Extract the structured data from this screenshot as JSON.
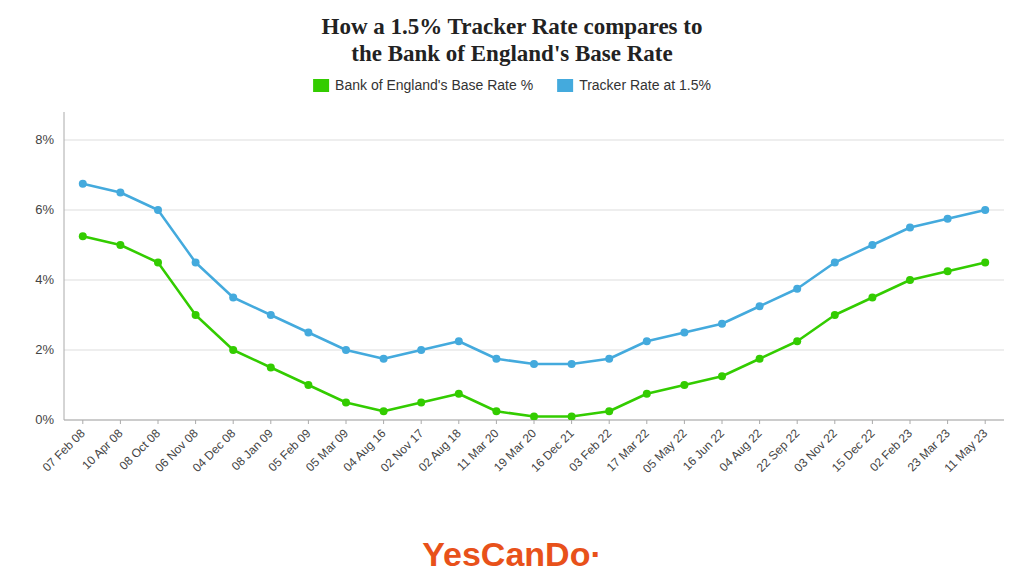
{
  "chart_data": {
    "type": "line",
    "title": "How a 1.5% Tracker Rate compares to\nthe Bank of England's Base Rate",
    "categories": [
      "07 Feb 08",
      "10 Apr 08",
      "08 Oct 08",
      "06 Nov 08",
      "04 Dec 08",
      "08 Jan 09",
      "05 Feb 09",
      "05 Mar 09",
      "04 Aug 16",
      "02 Nov 17",
      "02 Aug 18",
      "11 Mar 20",
      "19 Mar 20",
      "16 Dec 21",
      "03 Feb 22",
      "17 Mar 22",
      "05 May 22",
      "16 Jun 22",
      "04 Aug 22",
      "22 Sep 22",
      "03 Nov 22",
      "15 Dec 22",
      "02 Feb 23",
      "23 Mar 23",
      "11 May 23"
    ],
    "series": [
      {
        "name": "Bank of England's Base Rate %",
        "color": "#33cc00",
        "marker": "circle",
        "values": [
          5.25,
          5.0,
          4.5,
          3.0,
          2.0,
          1.5,
          1.0,
          0.5,
          0.25,
          0.5,
          0.75,
          0.25,
          0.1,
          0.1,
          0.25,
          0.75,
          1.0,
          1.25,
          1.75,
          2.25,
          3.0,
          3.5,
          4.0,
          4.25,
          4.5
        ]
      },
      {
        "name": "Tracker Rate at 1.5%",
        "color": "#44aadd",
        "marker": "circle",
        "values": [
          6.75,
          6.5,
          6.0,
          4.5,
          3.5,
          3.0,
          2.5,
          2.0,
          1.75,
          2.0,
          2.25,
          1.75,
          1.6,
          1.6,
          1.75,
          2.25,
          2.5,
          2.75,
          3.25,
          3.75,
          4.5,
          5.0,
          5.5,
          5.75,
          6.0
        ]
      }
    ],
    "ylim": [
      0,
      8.8
    ],
    "yticks": [
      {
        "value": 0,
        "label": "0%"
      },
      {
        "value": 2,
        "label": "2%"
      },
      {
        "value": 4,
        "label": "4%"
      },
      {
        "value": 6,
        "label": "6%"
      },
      {
        "value": 8,
        "label": "8%"
      }
    ],
    "grid": true,
    "legend": "top",
    "annotations": [
      {
        "text": "YesCanDo·",
        "color": "#e8511a"
      }
    ]
  }
}
